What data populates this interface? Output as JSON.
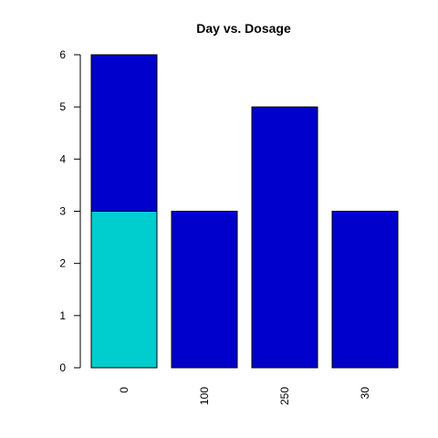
{
  "chart_data": {
    "type": "bar",
    "stacked": true,
    "title": "Day vs. Dosage",
    "xlabel": "",
    "ylabel": "",
    "categories": [
      "0",
      "100",
      "250",
      "30"
    ],
    "series": [
      {
        "values": [
          3,
          0,
          0,
          0
        ],
        "color": "#00CDCD"
      },
      {
        "values": [
          3,
          3,
          5,
          3
        ],
        "color": "#0000CD"
      }
    ],
    "ylim": [
      0,
      6
    ],
    "yticks": [
      0,
      1,
      2,
      3,
      4,
      5,
      6
    ],
    "grid": false,
    "legend": "none"
  }
}
